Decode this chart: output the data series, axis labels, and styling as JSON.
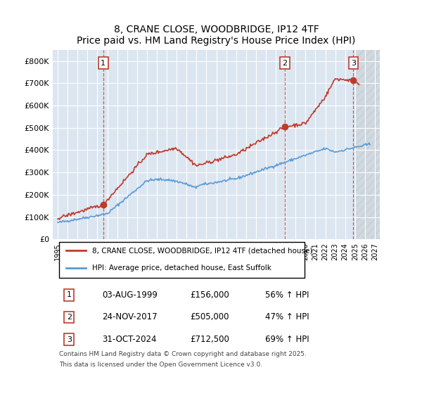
{
  "title": "8, CRANE CLOSE, WOODBRIDGE, IP12 4TF",
  "subtitle": "Price paid vs. HM Land Registry's House Price Index (HPI)",
  "red_label": "8, CRANE CLOSE, WOODBRIDGE, IP12 4TF (detached house)",
  "blue_label": "HPI: Average price, detached house, East Suffolk",
  "transactions": [
    {
      "num": 1,
      "date": "03-AUG-1999",
      "price": 156000,
      "pct": "56% ↑ HPI",
      "year": 1999.59
    },
    {
      "num": 2,
      "date": "24-NOV-2017",
      "price": 505000,
      "pct": "47% ↑ HPI",
      "year": 2017.9
    },
    {
      "num": 3,
      "date": "31-OCT-2024",
      "price": 712500,
      "pct": "69% ↑ HPI",
      "year": 2024.83
    }
  ],
  "footnote1": "Contains HM Land Registry data © Crown copyright and database right 2025.",
  "footnote2": "This data is licensed under the Open Government Licence v3.0.",
  "bg_color": "#dce6f1",
  "plot_bg": "#dce6f1",
  "hatch_color": "#c0c0c0",
  "red_color": "#c0392b",
  "blue_color": "#5b9bd5",
  "grid_color": "#ffffff",
  "ylim": [
    0,
    850000
  ],
  "xlim_start": 1994.5,
  "xlim_end": 2027.5,
  "yticks": [
    0,
    100000,
    200000,
    300000,
    400000,
    500000,
    600000,
    700000,
    800000
  ],
  "ytick_labels": [
    "£0",
    "£100K",
    "£200K",
    "£300K",
    "£400K",
    "£500K",
    "£600K",
    "£700K",
    "£800K"
  ],
  "xticks": [
    1995,
    1996,
    1997,
    1998,
    1999,
    2000,
    2001,
    2002,
    2003,
    2004,
    2005,
    2006,
    2007,
    2008,
    2009,
    2010,
    2011,
    2012,
    2013,
    2014,
    2015,
    2016,
    2017,
    2018,
    2019,
    2020,
    2021,
    2022,
    2023,
    2024,
    2025,
    2026,
    2027
  ]
}
